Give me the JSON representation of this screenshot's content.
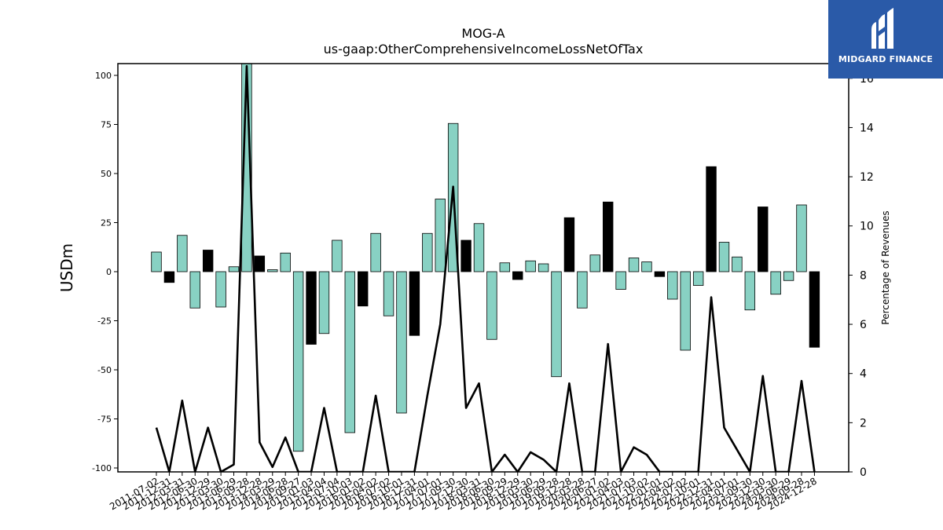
{
  "chart_data": {
    "type": "bar",
    "title": "MOG-A",
    "subtitle": "us-gaap:OtherComprehensiveIncomeLossNetOfTax",
    "ylabel": "USDm",
    "y2label": "Percentage of Revenues",
    "ylim": [
      -102,
      106
    ],
    "y2lim": [
      0,
      16.6
    ],
    "yticks": [
      100,
      75,
      50,
      25,
      0,
      -25,
      -50,
      -75,
      -100
    ],
    "y2ticks": [
      0,
      2,
      4,
      6,
      8,
      10,
      12,
      14,
      16
    ],
    "categories": [
      "2011-07-02",
      "2011-12-31",
      "2012-03-31",
      "2012-06-30",
      "2012-12-29",
      "2013-03-30",
      "2013-06-29",
      "2013-09-28",
      "2013-12-28",
      "2014-03-29",
      "2014-06-28",
      "2014-09-27",
      "2015-01-03",
      "2015-04-04",
      "2015-07-04",
      "2015-10-03",
      "2016-01-02",
      "2016-04-02",
      "2016-07-02",
      "2016-10-01",
      "2016-12-31",
      "2017-04-01",
      "2017-07-01",
      "2017-09-30",
      "2017-12-30",
      "2018-03-31",
      "2018-06-30",
      "2018-09-29",
      "2018-12-29",
      "2019-03-30",
      "2019-06-29",
      "2019-09-28",
      "2019-12-28",
      "2020-03-28",
      "2020-06-27",
      "2021-01-02",
      "2021-04-03",
      "2021-07-03",
      "2021-10-02",
      "2022-01-01",
      "2022-04-02",
      "2022-07-02",
      "2022-10-01",
      "2022-12-31",
      "2023-04-01",
      "2023-07-01",
      "2023-09-30",
      "2023-12-30",
      "2024-03-30",
      "2024-06-29",
      "2024-09-28",
      "2024-12-28"
    ],
    "series": [
      {
        "values": [
          10,
          -5.5,
          18.5,
          -18.5,
          11,
          -18,
          2.5,
          108,
          8,
          1,
          9.5,
          -91.5,
          -37,
          -31.5,
          16,
          -82,
          -17.5,
          19.5,
          -22.5,
          -72,
          -32.5,
          19.5,
          37,
          75.5,
          16,
          24.5,
          -34.5,
          4.5,
          -4,
          5.5,
          4,
          -53.5,
          27.5,
          -18.5,
          8.5,
          35.5,
          -9,
          7,
          5,
          -2.5,
          -14,
          -40,
          -7,
          53.5,
          15,
          7.5,
          -19.5,
          33,
          -11.5,
          -4.5,
          34,
          -38.5
        ],
        "highlight": [
          false,
          true,
          false,
          false,
          true,
          false,
          false,
          false,
          true,
          false,
          false,
          false,
          true,
          false,
          false,
          false,
          true,
          false,
          false,
          false,
          true,
          false,
          false,
          false,
          true,
          false,
          false,
          false,
          true,
          false,
          false,
          false,
          true,
          false,
          false,
          true,
          false,
          false,
          false,
          true,
          false,
          false,
          false,
          true,
          false,
          false,
          false,
          true,
          false,
          false,
          false,
          true
        ]
      },
      {
        "axis": "right",
        "values": [
          1.8,
          0,
          2.9,
          0,
          1.8,
          0,
          0.3,
          16.5,
          1.2,
          0.2,
          1.4,
          0,
          0,
          2.6,
          0,
          0,
          0,
          3.1,
          0,
          0,
          0,
          3.1,
          6,
          11.6,
          2.6,
          3.6,
          0,
          0.7,
          0,
          0.8,
          0.5,
          0,
          3.6,
          0,
          0,
          5.2,
          0,
          1,
          0.7,
          0,
          0,
          0,
          0,
          7.1,
          1.8,
          0.9,
          0,
          3.9,
          0,
          0,
          3.7,
          0
        ]
      }
    ],
    "colors": {
      "bar": "#88d1c3",
      "bar_highlight": "#000000",
      "line": "#000000"
    }
  },
  "logo": {
    "text": "MIDGARD FINANCE",
    "icon": "midgard-logo-icon"
  }
}
